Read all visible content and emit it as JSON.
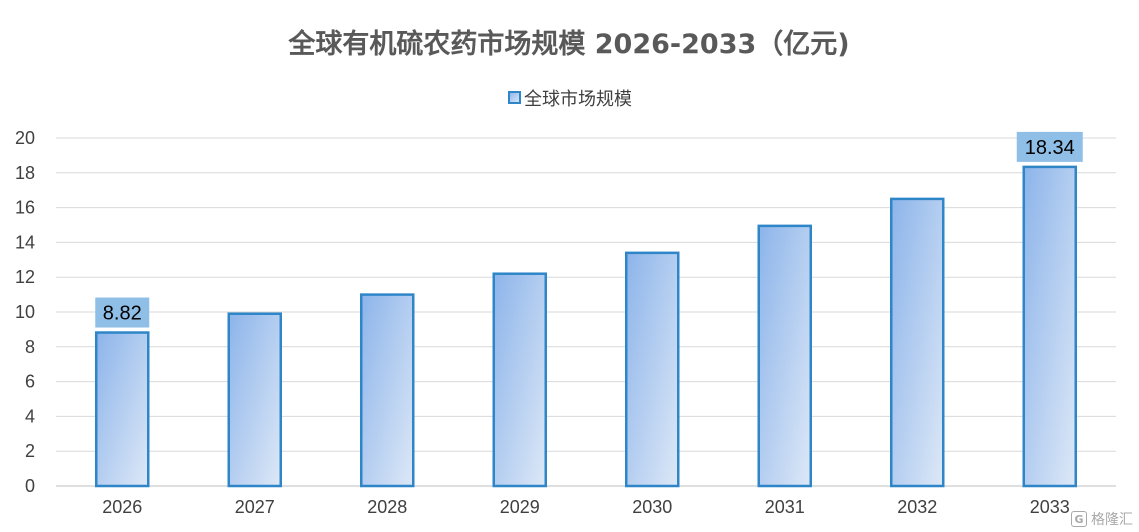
{
  "chart_data": {
    "type": "bar",
    "title": "全球有机硫农药市场规模 2026-2033（亿元)",
    "legend_position": "top",
    "grid": true,
    "categories": [
      "2026",
      "2027",
      "2028",
      "2029",
      "2030",
      "2031",
      "2032",
      "2033"
    ],
    "series": [
      {
        "name": "全球市场规模",
        "values": [
          8.82,
          9.9,
          11.0,
          12.2,
          13.4,
          14.95,
          16.5,
          18.34
        ]
      }
    ],
    "data_labels": [
      {
        "category": "2026",
        "text": "8.82"
      },
      {
        "category": "2033",
        "text": "18.34"
      }
    ],
    "ylim": [
      0,
      20
    ],
    "yticks": [
      0,
      2,
      4,
      6,
      8,
      10,
      12,
      14,
      16,
      18,
      20
    ],
    "colors": {
      "bar_fill_top": "#8cb4ea",
      "bar_fill_bottom": "#dde8f7",
      "bar_stroke": "#2e86c8",
      "label_box": "#8fbfe6",
      "grid": "#d9d9d9",
      "axis": "#bfbfbf"
    }
  },
  "watermark": {
    "icon": "g-logo-icon",
    "text": "格隆汇"
  }
}
